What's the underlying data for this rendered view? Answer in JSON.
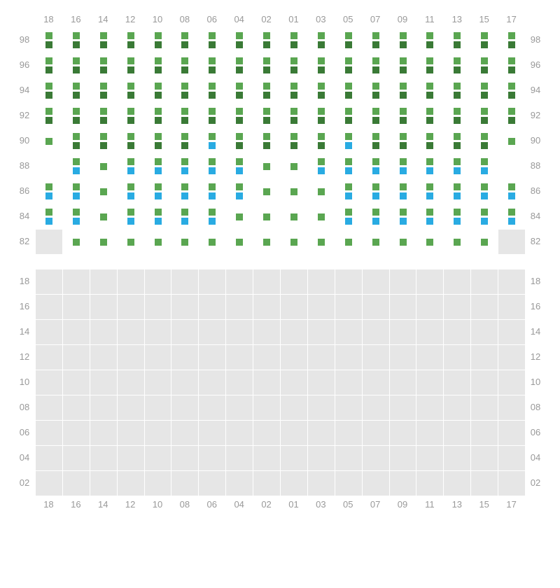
{
  "layout": {
    "columns": [
      "18",
      "16",
      "14",
      "12",
      "10",
      "08",
      "06",
      "04",
      "02",
      "01",
      "03",
      "05",
      "07",
      "09",
      "11",
      "13",
      "15",
      "17"
    ],
    "topRows": [
      "98",
      "96",
      "94",
      "92",
      "90",
      "88",
      "86",
      "84",
      "82"
    ],
    "bottomRows": [
      "18",
      "16",
      "14",
      "12",
      "10",
      "08",
      "06",
      "04",
      "02"
    ],
    "cellSize": 36,
    "seatSize": 10,
    "gridLineColor": "#ffffff",
    "disabledBg": "#e6e6e6",
    "textColor": "#999999",
    "fontSize": 13
  },
  "colors": {
    "green": "#5aa651",
    "darkgreen": "#3a7a36",
    "blue": "#29abe2"
  },
  "topGrid": {
    "98": {
      "default": [
        "g",
        "dg"
      ]
    },
    "96": {
      "default": [
        "g",
        "dg"
      ]
    },
    "94": {
      "default": [
        "g",
        "dg"
      ]
    },
    "92": {
      "default": [
        "g",
        "dg"
      ]
    },
    "90": {
      "default": [
        "g",
        "dg"
      ],
      "overrides": {
        "18": [
          "g",
          null
        ],
        "06": [
          "g",
          "bl"
        ],
        "05": [
          "g",
          "bl"
        ],
        "17": [
          "g",
          null
        ]
      }
    },
    "88": {
      "default": [
        "g",
        "bl"
      ],
      "overrides": {
        "18": [
          null,
          null
        ],
        "14": [
          "g",
          null
        ],
        "02": [
          "g",
          null
        ],
        "01": [
          "g",
          null
        ],
        "17": [
          null,
          null
        ]
      }
    },
    "86": {
      "default": [
        "g",
        "bl"
      ],
      "overrides": {
        "14": [
          "g",
          null
        ],
        "02": [
          "g",
          null
        ],
        "01": [
          "g",
          null
        ],
        "03": [
          "g",
          null
        ]
      }
    },
    "84": {
      "default": [
        "g",
        "bl"
      ],
      "overrides": {
        "14": [
          "g",
          null
        ],
        "04": [
          "g",
          null
        ],
        "02": [
          "g",
          null
        ],
        "01": [
          "g",
          null
        ],
        "03": [
          "g",
          null
        ]
      }
    },
    "82": {
      "default": [
        "g",
        null
      ],
      "overrides": {
        "18": "disabled",
        "17": "disabled"
      }
    }
  },
  "bottomGrid": "all-disabled"
}
